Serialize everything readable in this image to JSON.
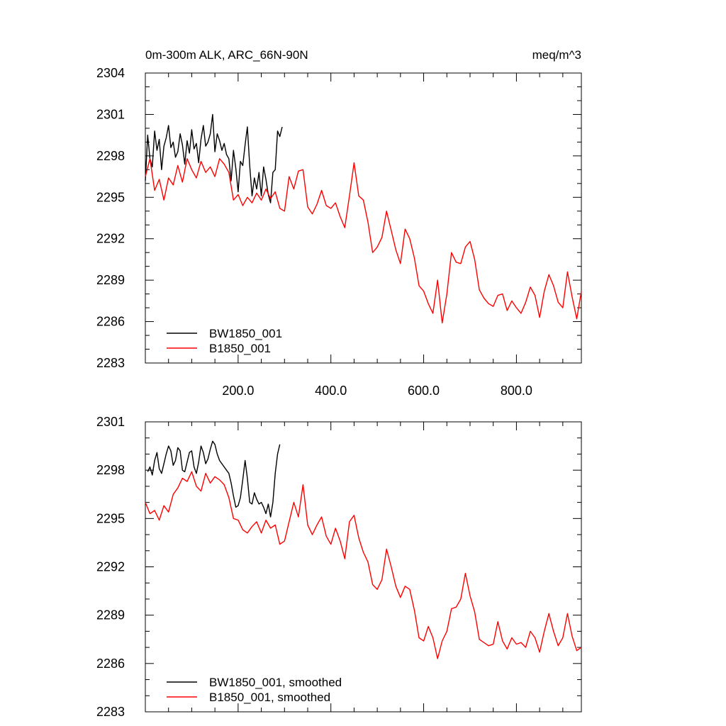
{
  "chart_data": [
    {
      "type": "line",
      "title": "0m-300m ALK, ARC_66N-90N",
      "units": "meq/m^3",
      "xlim": [
        0,
        940
      ],
      "ylim": [
        2283,
        2304
      ],
      "yticks": [
        2283,
        2286,
        2289,
        2292,
        2295,
        2298,
        2301,
        2304
      ],
      "xticks": [
        200,
        400,
        600,
        800
      ],
      "xtick_labels": [
        "200.0",
        "400.0",
        "600.0",
        "800.0"
      ],
      "legend_position": "bottom-left",
      "grid": false,
      "series": [
        {
          "name": "BW1850_001",
          "color": "#000000",
          "x": [
            0,
            5,
            10,
            15,
            20,
            25,
            30,
            35,
            40,
            45,
            50,
            55,
            60,
            65,
            70,
            75,
            80,
            85,
            90,
            95,
            100,
            105,
            110,
            115,
            120,
            125,
            130,
            135,
            140,
            145,
            150,
            155,
            160,
            165,
            170,
            175,
            180,
            185,
            190,
            195,
            200,
            205,
            210,
            215,
            220,
            225,
            230,
            235,
            240,
            245,
            250,
            255,
            260,
            265,
            270,
            275,
            280,
            285,
            290,
            295
          ],
          "y": [
            2296.2,
            2299.5,
            2297.8,
            2297.2,
            2299.8,
            2298.4,
            2299.2,
            2297.0,
            2298.7,
            2299.3,
            2300.2,
            2298.6,
            2299.0,
            2297.9,
            2298.3,
            2299.6,
            2298.8,
            2297.4,
            2299.1,
            2298.2,
            2299.9,
            2298.5,
            2298.9,
            2297.5,
            2299.2,
            2300.2,
            2298.7,
            2299.0,
            2299.6,
            2301.0,
            2298.3,
            2299.6,
            2299.1,
            2298.4,
            2298.9,
            2298.1,
            2297.8,
            2296.2,
            2298.4,
            2297.1,
            2295.4,
            2297.6,
            2297.3,
            2298.8,
            2300.1,
            2297.3,
            2295.1,
            2296.4,
            2295.6,
            2296.8,
            2295.1,
            2297.2,
            2296.3,
            2295.2,
            2294.6,
            2296.8,
            2297.0,
            2299.8,
            2299.4,
            2300.1
          ]
        },
        {
          "name": "B1850_001",
          "color": "#ff0000",
          "x": [
            0,
            10,
            20,
            30,
            40,
            50,
            60,
            70,
            80,
            90,
            100,
            110,
            120,
            130,
            140,
            150,
            160,
            170,
            180,
            190,
            200,
            210,
            220,
            230,
            240,
            250,
            260,
            270,
            280,
            290,
            300,
            310,
            320,
            330,
            340,
            350,
            360,
            370,
            380,
            390,
            400,
            410,
            420,
            430,
            440,
            450,
            460,
            470,
            480,
            490,
            500,
            510,
            520,
            530,
            540,
            550,
            560,
            570,
            580,
            590,
            600,
            610,
            620,
            630,
            640,
            650,
            660,
            670,
            680,
            690,
            700,
            710,
            720,
            730,
            740,
            750,
            760,
            770,
            780,
            790,
            800,
            810,
            820,
            830,
            840,
            850,
            860,
            870,
            880,
            890,
            900,
            910,
            920,
            930,
            940
          ],
          "y": [
            2296.5,
            2297.8,
            2295.5,
            2296.3,
            2294.8,
            2296.4,
            2295.9,
            2297.3,
            2296.1,
            2297.8,
            2297.0,
            2296.4,
            2297.6,
            2296.8,
            2297.2,
            2296.5,
            2297.8,
            2297.4,
            2296.8,
            2294.8,
            2295.2,
            2294.4,
            2295.0,
            2294.6,
            2295.3,
            2294.8,
            2295.6,
            2294.9,
            2295.4,
            2294.2,
            2294.0,
            2296.5,
            2295.6,
            2296.9,
            2297.0,
            2294.3,
            2293.8,
            2294.5,
            2295.5,
            2294.4,
            2294.2,
            2294.6,
            2293.6,
            2292.8,
            2295.1,
            2297.5,
            2295.1,
            2294.8,
            2293.2,
            2291.0,
            2291.4,
            2292.1,
            2294.0,
            2292.6,
            2291.2,
            2290.2,
            2292.7,
            2292.0,
            2290.6,
            2288.6,
            2288.2,
            2287.3,
            2286.6,
            2289.0,
            2285.9,
            2288.0,
            2291.0,
            2290.3,
            2290.2,
            2291.4,
            2291.8,
            2290.5,
            2288.3,
            2287.7,
            2287.3,
            2287.1,
            2287.9,
            2288.0,
            2286.8,
            2287.5,
            2287.0,
            2286.6,
            2287.4,
            2288.5,
            2287.9,
            2286.3,
            2288.2,
            2289.4,
            2288.6,
            2287.4,
            2287.0,
            2289.6,
            2287.8,
            2286.2,
            2288.2
          ]
        }
      ]
    },
    {
      "type": "line",
      "xlim": [
        0,
        940
      ],
      "ylim": [
        2283,
        2301
      ],
      "yticks": [
        2283,
        2286,
        2289,
        2292,
        2295,
        2298,
        2301
      ],
      "legend_position": "bottom-left",
      "grid": false,
      "series": [
        {
          "name": "BW1850_001, smoothed",
          "color": "#000000",
          "x": [
            5,
            10,
            15,
            20,
            25,
            30,
            35,
            40,
            45,
            50,
            55,
            60,
            65,
            70,
            75,
            80,
            85,
            90,
            95,
            100,
            105,
            110,
            115,
            120,
            125,
            130,
            135,
            140,
            145,
            150,
            155,
            160,
            165,
            170,
            175,
            180,
            185,
            190,
            195,
            200,
            205,
            210,
            215,
            220,
            225,
            230,
            235,
            240,
            245,
            250,
            255,
            260,
            265,
            270,
            275,
            280,
            285,
            290
          ],
          "y": [
            2297.9,
            2298.2,
            2297.7,
            2298.6,
            2299.1,
            2298.1,
            2297.8,
            2298.4,
            2299.0,
            2299.5,
            2299.2,
            2298.3,
            2298.6,
            2299.4,
            2299.2,
            2298.0,
            2297.9,
            2298.5,
            2299.1,
            2299.2,
            2298.2,
            2297.8,
            2298.5,
            2299.5,
            2299.1,
            2298.4,
            2298.7,
            2299.3,
            2299.8,
            2299.6,
            2299.0,
            2298.6,
            2298.4,
            2298.2,
            2298.0,
            2297.8,
            2297.2,
            2296.4,
            2295.7,
            2295.8,
            2296.3,
            2297.4,
            2298.6,
            2297.5,
            2296.0,
            2295.9,
            2296.6,
            2296.2,
            2295.9,
            2296.0,
            2295.7,
            2295.3,
            2295.9,
            2295.1,
            2296.0,
            2297.8,
            2299.0,
            2299.6
          ]
        },
        {
          "name": "B1850_001, smoothed",
          "color": "#ff0000",
          "x": [
            0,
            10,
            20,
            30,
            40,
            50,
            60,
            70,
            80,
            90,
            100,
            110,
            120,
            130,
            140,
            150,
            160,
            170,
            180,
            190,
            200,
            210,
            220,
            230,
            240,
            250,
            260,
            270,
            280,
            290,
            300,
            310,
            320,
            330,
            340,
            350,
            360,
            370,
            380,
            390,
            400,
            410,
            420,
            430,
            440,
            450,
            460,
            470,
            480,
            490,
            500,
            510,
            520,
            530,
            540,
            550,
            560,
            570,
            580,
            590,
            600,
            610,
            620,
            630,
            640,
            650,
            660,
            670,
            680,
            690,
            700,
            710,
            720,
            730,
            740,
            750,
            760,
            770,
            780,
            790,
            800,
            810,
            820,
            830,
            840,
            850,
            860,
            870,
            880,
            890,
            900,
            910,
            920,
            930,
            940
          ],
          "y": [
            2296.0,
            2295.3,
            2295.5,
            2294.9,
            2295.8,
            2295.4,
            2296.5,
            2296.9,
            2297.5,
            2297.3,
            2297.9,
            2297.0,
            2296.7,
            2297.8,
            2297.2,
            2297.6,
            2297.4,
            2297.1,
            2296.3,
            2295.0,
            2294.9,
            2294.3,
            2294.1,
            2294.5,
            2294.8,
            2294.1,
            2294.9,
            2294.4,
            2294.6,
            2293.4,
            2293.6,
            2294.8,
            2296.0,
            2295.1,
            2297.1,
            2294.6,
            2294.0,
            2294.6,
            2295.1,
            2293.9,
            2293.4,
            2294.4,
            2293.6,
            2292.5,
            2294.8,
            2295.2,
            2293.8,
            2292.9,
            2292.3,
            2290.9,
            2290.6,
            2291.2,
            2293.1,
            2292.0,
            2290.8,
            2290.1,
            2290.8,
            2290.6,
            2289.3,
            2287.6,
            2287.4,
            2288.3,
            2287.6,
            2286.3,
            2287.4,
            2288.0,
            2289.4,
            2289.5,
            2290.0,
            2291.6,
            2290.2,
            2289.2,
            2287.5,
            2287.3,
            2287.1,
            2287.2,
            2288.6,
            2287.4,
            2286.9,
            2287.6,
            2287.2,
            2287.3,
            2287.0,
            2288.0,
            2287.6,
            2286.7,
            2288.0,
            2289.1,
            2288.0,
            2287.1,
            2287.6,
            2289.1,
            2287.7,
            2286.8,
            2287.0
          ]
        }
      ]
    }
  ]
}
